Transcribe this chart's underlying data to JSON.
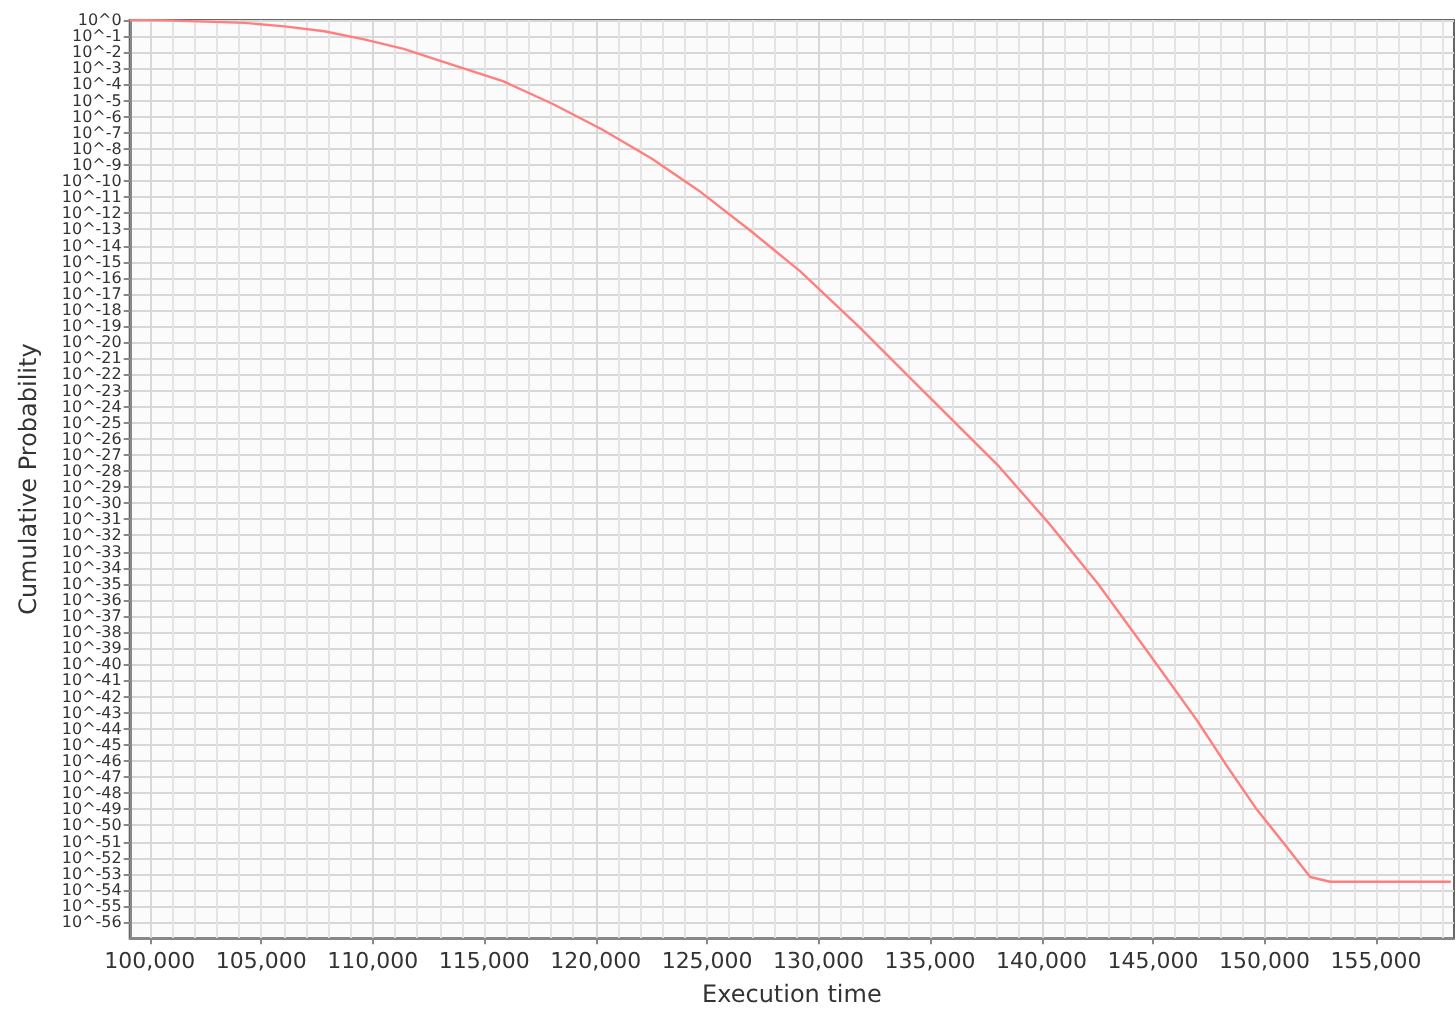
{
  "chart_data": {
    "type": "line",
    "xlabel": "Execution time",
    "ylabel": "Cumulative Probability",
    "log": "y",
    "grid": true,
    "marker": "none",
    "line_style": "solid",
    "xlim": [
      99100,
      158500
    ],
    "ylim": [
      1e-57,
      1
    ],
    "xticks": [
      {
        "value": 100000,
        "label": "100,000"
      },
      {
        "value": 105000,
        "label": "105,000"
      },
      {
        "value": 110000,
        "label": "110,000"
      },
      {
        "value": 115000,
        "label": "115,000"
      },
      {
        "value": 120000,
        "label": "120,000"
      },
      {
        "value": 125000,
        "label": "125,000"
      },
      {
        "value": 130000,
        "label": "130,000"
      },
      {
        "value": 135000,
        "label": "135,000"
      },
      {
        "value": 140000,
        "label": "140,000"
      },
      {
        "value": 145000,
        "label": "145,000"
      },
      {
        "value": 150000,
        "label": "150,000"
      },
      {
        "value": 155000,
        "label": "155,000"
      }
    ],
    "yticks": [
      {
        "value": 1,
        "label": "10^0"
      },
      {
        "value": 0.1,
        "label": "10^-1"
      },
      {
        "value": 0.01,
        "label": "10^-2"
      },
      {
        "value": 0.001,
        "label": "10^-3"
      },
      {
        "value": 0.0001,
        "label": "10^-4"
      },
      {
        "value": 1e-05,
        "label": "10^-5"
      },
      {
        "value": 1e-06,
        "label": "10^-6"
      },
      {
        "value": 1e-07,
        "label": "10^-7"
      },
      {
        "value": 1e-08,
        "label": "10^-8"
      },
      {
        "value": 1e-09,
        "label": "10^-9"
      },
      {
        "value": 1e-10,
        "label": "10^-10"
      },
      {
        "value": 1e-11,
        "label": "10^-11"
      },
      {
        "value": 1e-12,
        "label": "10^-12"
      },
      {
        "value": 1e-13,
        "label": "10^-13"
      },
      {
        "value": 1e-14,
        "label": "10^-14"
      },
      {
        "value": 1e-15,
        "label": "10^-15"
      },
      {
        "value": 1e-16,
        "label": "10^-16"
      },
      {
        "value": 1e-17,
        "label": "10^-17"
      },
      {
        "value": 1e-18,
        "label": "10^-18"
      },
      {
        "value": 1e-19,
        "label": "10^-19"
      },
      {
        "value": 1e-20,
        "label": "10^-20"
      },
      {
        "value": 1e-21,
        "label": "10^-21"
      },
      {
        "value": 1e-22,
        "label": "10^-22"
      },
      {
        "value": 1e-23,
        "label": "10^-23"
      },
      {
        "value": 1e-24,
        "label": "10^-24"
      },
      {
        "value": 1e-25,
        "label": "10^-25"
      },
      {
        "value": 1e-26,
        "label": "10^-26"
      },
      {
        "value": 1e-27,
        "label": "10^-27"
      },
      {
        "value": 1e-28,
        "label": "10^-28"
      },
      {
        "value": 1e-29,
        "label": "10^-29"
      },
      {
        "value": 1e-30,
        "label": "10^-30"
      },
      {
        "value": 1e-31,
        "label": "10^-31"
      },
      {
        "value": 1e-32,
        "label": "10^-32"
      },
      {
        "value": 1e-33,
        "label": "10^-33"
      },
      {
        "value": 1e-34,
        "label": "10^-34"
      },
      {
        "value": 1e-35,
        "label": "10^-35"
      },
      {
        "value": 1e-36,
        "label": "10^-36"
      },
      {
        "value": 1e-37,
        "label": "10^-37"
      },
      {
        "value": 1e-38,
        "label": "10^-38"
      },
      {
        "value": 1e-39,
        "label": "10^-39"
      },
      {
        "value": 1e-40,
        "label": "10^-40"
      },
      {
        "value": 1e-41,
        "label": "10^-41"
      },
      {
        "value": 1e-42,
        "label": "10^-42"
      },
      {
        "value": 1e-43,
        "label": "10^-43"
      },
      {
        "value": 1e-44,
        "label": "10^-44"
      },
      {
        "value": 1e-45,
        "label": "10^-45"
      },
      {
        "value": 1e-46,
        "label": "10^-46"
      },
      {
        "value": 1e-47,
        "label": "10^-47"
      },
      {
        "value": 1e-48,
        "label": "10^-48"
      },
      {
        "value": 1e-49,
        "label": "10^-49"
      },
      {
        "value": 1e-50,
        "label": "10^-50"
      },
      {
        "value": 1e-51,
        "label": "10^-51"
      },
      {
        "value": 1e-52,
        "label": "10^-52"
      },
      {
        "value": 1e-53,
        "label": "10^-53"
      },
      {
        "value": 1e-54,
        "label": "10^-54"
      },
      {
        "value": 1e-55,
        "label": "10^-55"
      },
      {
        "value": 1e-56,
        "label": "10^-56"
      }
    ],
    "x": [
      99110,
      100710,
      104270,
      106050,
      107830,
      109610,
      111390,
      113170,
      115840,
      118060,
      120290,
      122510,
      124730,
      126960,
      129180,
      131850,
      134520,
      138080,
      140300,
      142530,
      144750,
      146980,
      148310,
      149650,
      150980,
      152050,
      152940,
      158360
    ],
    "series": [
      {
        "color": "#ff7f7f",
        "values": [
          1,
          0.95,
          0.66,
          0.4,
          0.2,
          0.063,
          0.016,
          0.0025,
          0.00016,
          6.3e-06,
          1.6e-07,
          2.5e-09,
          2e-11,
          7.9e-14,
          2.5e-16,
          7.9e-20,
          1.6e-23,
          2e-28,
          6.3e-32,
          1e-35,
          6.3e-40,
          3.2e-44,
          5e-47,
          1e-49,
          5e-52,
          6.3e-54,
          3.2e-54,
          3.2e-54
        ]
      }
    ]
  }
}
